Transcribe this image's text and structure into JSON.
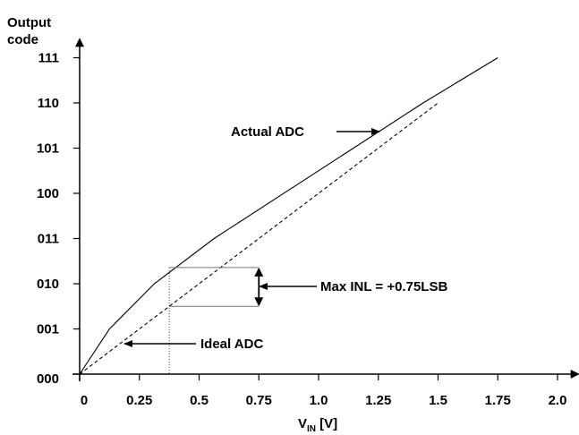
{
  "chart_data": {
    "type": "line",
    "ylabel_line1": "Output",
    "ylabel_line2": "code",
    "xlabel_main": "V",
    "xlabel_sub": "IN",
    "xlabel_unit": " [V]",
    "x_ticks": [
      0,
      0.25,
      0.5,
      0.75,
      1.0,
      1.25,
      1.5,
      1.75,
      2.0
    ],
    "x_tick_labels": [
      "0",
      "0.25",
      "0.5",
      "0.75",
      "1.0",
      "1.25",
      "1.5",
      "1.75",
      "2.0"
    ],
    "y_ticks": [
      0,
      1,
      2,
      3,
      4,
      5,
      6,
      7
    ],
    "y_tick_labels": [
      "000",
      "001",
      "010",
      "011",
      "100",
      "101",
      "110",
      "111"
    ],
    "xlim": [
      0,
      2.1
    ],
    "ylim": [
      0,
      7.4
    ],
    "series": [
      {
        "name": "Actual ADC",
        "style": "solid",
        "x": [
          0,
          0.125,
          0.3125,
          0.5625,
          1.4375,
          1.75
        ],
        "y": [
          0,
          1.0,
          2.0,
          3.0,
          6.0,
          7.0
        ]
      },
      {
        "name": "Ideal ADC",
        "style": "dashed",
        "x": [
          0,
          1.5
        ],
        "y": [
          0,
          6.0
        ]
      }
    ],
    "annotations": {
      "actual_label": "Actual ADC",
      "ideal_label": "Ideal ADC",
      "inl_label": "Max INL = +0.75LSB",
      "inl_x": 0.375,
      "inl_y_top": 2.36,
      "inl_y_bottom": 1.5
    }
  }
}
